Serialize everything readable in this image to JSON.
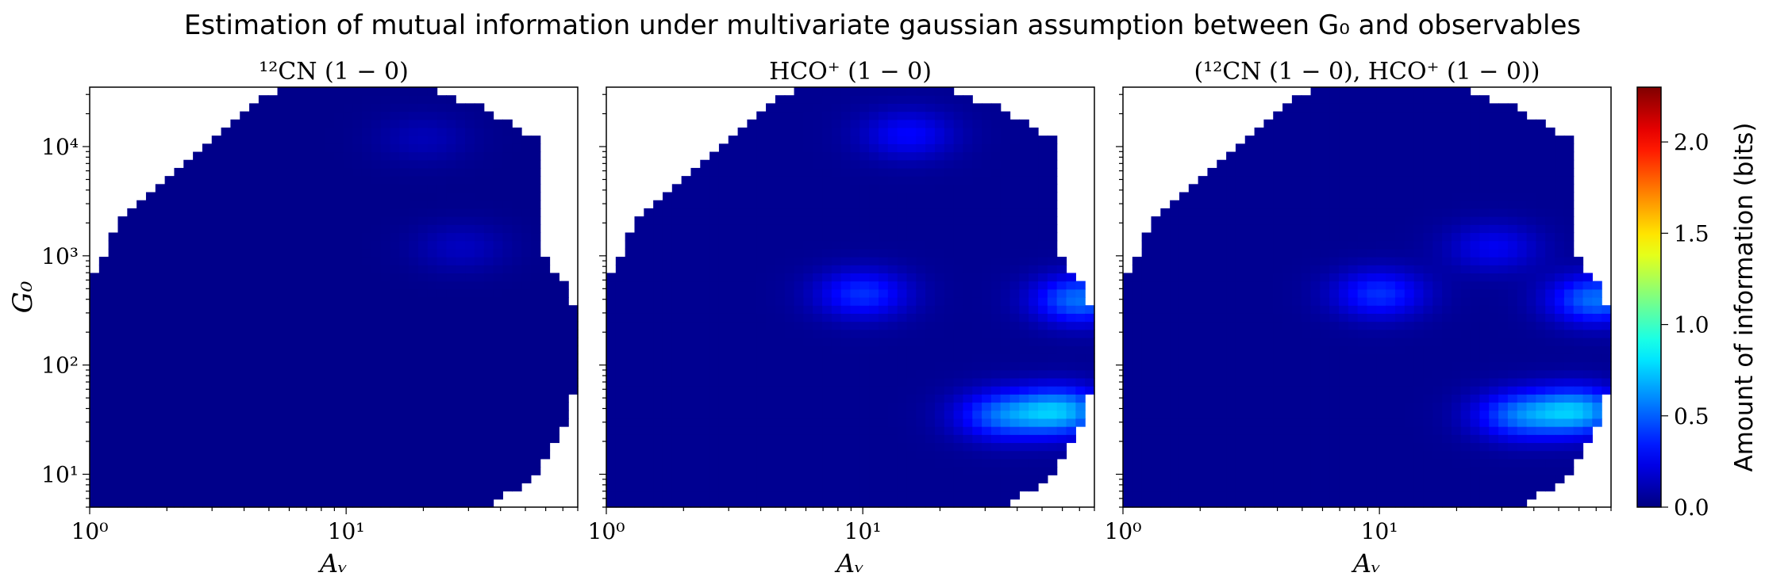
{
  "figure": {
    "title": "Estimation of mutual information under multivariate gaussian assumption between G₀ and observables"
  },
  "colorbar": {
    "label": "Amount of information (bits)",
    "colormap": "jet",
    "ticks": [
      "0.0",
      "0.5",
      "1.0",
      "1.5",
      "2.0"
    ],
    "range": [
      0,
      2.3
    ]
  },
  "chart_data": [
    {
      "type": "heatmap",
      "title": "¹²CN (1 − 0)",
      "xlabel": "Aᵥ",
      "ylabel": "G₀",
      "x_scale": "log",
      "y_scale": "log",
      "xlim": [
        1,
        80
      ],
      "ylim": [
        5,
        35000
      ],
      "x_ticks": [
        "10⁰",
        "10¹"
      ],
      "y_ticks": [
        "10¹",
        "10²",
        "10³",
        "10⁴"
      ],
      "peak_bits": 0.12,
      "hotspots": [
        {
          "av": 28,
          "g0": 1200,
          "bits": 0.12
        },
        {
          "av": 20,
          "g0": 12000,
          "bits": 0.1
        }
      ]
    },
    {
      "type": "heatmap",
      "title": "HCO⁺ (1 − 0)",
      "xlabel": "Aᵥ",
      "x_scale": "log",
      "y_scale": "log",
      "xlim": [
        1,
        80
      ],
      "ylim": [
        5,
        35000
      ],
      "x_ticks": [
        "10⁰",
        "10¹"
      ],
      "peak_bits": 0.65,
      "hotspots": [
        {
          "av": 60,
          "g0": 38,
          "bits": 0.62
        },
        {
          "av": 35,
          "g0": 35,
          "bits": 0.45
        },
        {
          "av": 70,
          "g0": 400,
          "bits": 0.5
        },
        {
          "av": 10,
          "g0": 450,
          "bits": 0.35
        },
        {
          "av": 15,
          "g0": 13000,
          "bits": 0.25
        }
      ]
    },
    {
      "type": "heatmap",
      "title": "(¹²CN (1 − 0), HCO⁺ (1 − 0))",
      "xlabel": "Aᵥ",
      "x_scale": "log",
      "y_scale": "log",
      "xlim": [
        1,
        80
      ],
      "ylim": [
        5,
        35000
      ],
      "x_ticks": [
        "10⁰",
        "10¹"
      ],
      "peak_bits": 0.65,
      "hotspots": [
        {
          "av": 60,
          "g0": 38,
          "bits": 0.62
        },
        {
          "av": 35,
          "g0": 35,
          "bits": 0.45
        },
        {
          "av": 70,
          "g0": 400,
          "bits": 0.5
        },
        {
          "av": 10,
          "g0": 450,
          "bits": 0.35
        },
        {
          "av": 28,
          "g0": 1200,
          "bits": 0.22
        }
      ]
    }
  ]
}
